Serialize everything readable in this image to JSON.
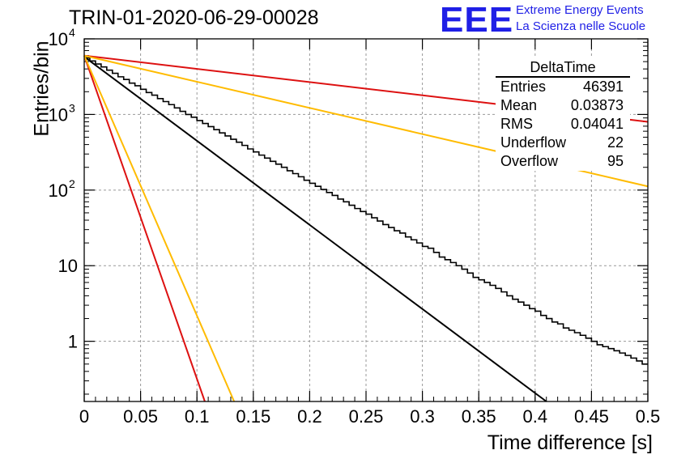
{
  "title": "TRIN-01-2020-06-29-00028",
  "logo": {
    "mark": "EEE",
    "line1": "Extreme Energy Events",
    "line2": "La Scienza nelle Scuole",
    "color": "#1f1fe6"
  },
  "stats": {
    "name": "DeltaTime",
    "rows": [
      {
        "label": "Entries",
        "value": "46391"
      },
      {
        "label": "Mean",
        "value": "0.03873"
      },
      {
        "label": "RMS",
        "value": "0.04041"
      },
      {
        "label": "Underflow",
        "value": "22"
      },
      {
        "label": "Overflow",
        "value": "95"
      }
    ]
  },
  "chart_data": {
    "type": "line",
    "title": "TRIN-01-2020-06-29-00028",
    "xlabel": "Time difference [s]",
    "ylabel": "Entries/bin",
    "xlim": [
      0,
      0.5
    ],
    "ylim": [
      0.16,
      10000
    ],
    "yscale": "log",
    "grid": true,
    "x_ticks": [
      "0",
      "0.05",
      "0.1",
      "0.15",
      "0.2",
      "0.25",
      "0.3",
      "0.35",
      "0.4",
      "0.45",
      "0.5"
    ],
    "y_ticks": [
      {
        "v": 1,
        "label": "1"
      },
      {
        "v": 10,
        "label": "10"
      },
      {
        "v": 100,
        "label": "10",
        "sup": "2"
      },
      {
        "v": 1000,
        "label": "10",
        "sup": "3"
      },
      {
        "v": 10000,
        "label": "10",
        "sup": "4"
      }
    ],
    "histogram": {
      "color": "#000000",
      "bin_width": 0.005,
      "values": [
        5600,
        5100,
        4650,
        4250,
        3850,
        3500,
        3150,
        2900,
        2600,
        2400,
        2150,
        1950,
        1800,
        1620,
        1480,
        1350,
        1220,
        1100,
        1000,
        920,
        830,
        760,
        690,
        630,
        570,
        520,
        470,
        430,
        390,
        350,
        320,
        290,
        265,
        240,
        220,
        200,
        180,
        165,
        150,
        135,
        123,
        112,
        102,
        93,
        85,
        76,
        70,
        63,
        57,
        52,
        48,
        43,
        39,
        35,
        32,
        29,
        27,
        24,
        22,
        20,
        18,
        17,
        15,
        13,
        12,
        11,
        10,
        9,
        8,
        7,
        6.5,
        6,
        5.5,
        5,
        4.5,
        4,
        3.6,
        3.3,
        3,
        2.7,
        2.5,
        2.2,
        2,
        1.8,
        1.7,
        1.5,
        1.4,
        1.3,
        1.2,
        1.1,
        1,
        0.9,
        0.85,
        0.8,
        0.75,
        0.7,
        0.65,
        0.6,
        0.55,
        0.5
      ]
    },
    "series": [
      {
        "color": "#000000",
        "x": [
          0,
          0.41
        ],
        "y": [
          5800,
          0.16
        ]
      },
      {
        "color": "#dd1111",
        "x": [
          0,
          0.5
        ],
        "y": [
          6000,
          800
        ]
      },
      {
        "color": "#ffbb00",
        "x": [
          0,
          0.5
        ],
        "y": [
          6000,
          112
        ]
      },
      {
        "color": "#dd1111",
        "x": [
          0,
          0.107
        ],
        "y": [
          6000,
          0.16
        ]
      },
      {
        "color": "#ffbb00",
        "x": [
          0,
          0.133
        ],
        "y": [
          6000,
          0.16
        ]
      }
    ]
  }
}
